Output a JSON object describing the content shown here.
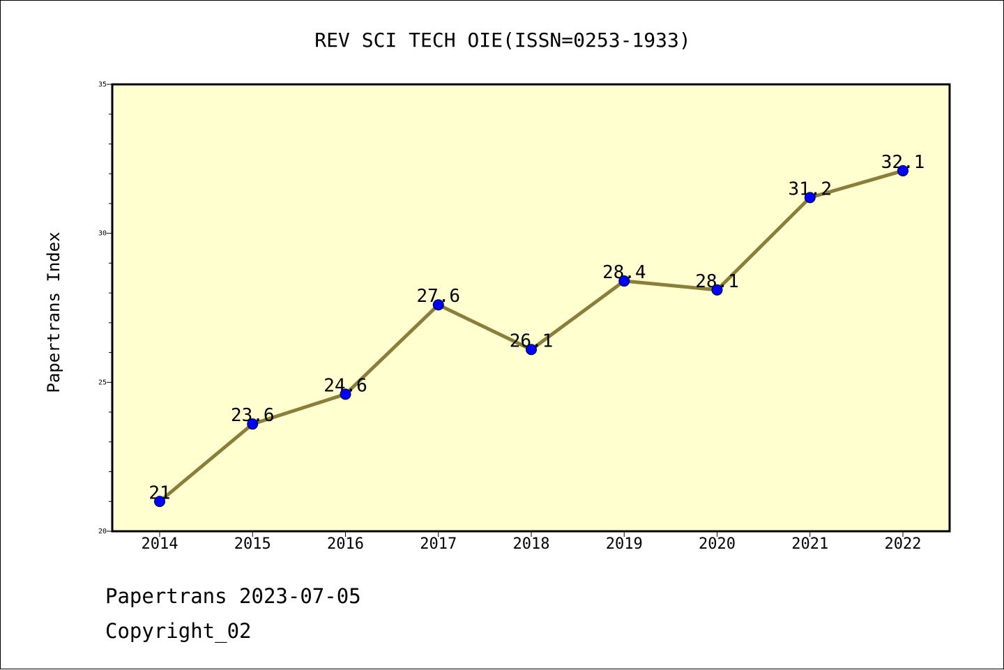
{
  "chart_data": {
    "type": "line",
    "title": "REV SCI TECH OIE(ISSN=0253-1933)",
    "xlabel": "",
    "ylabel": "Papertrans Index",
    "categories": [
      "2014",
      "2015",
      "2016",
      "2017",
      "2018",
      "2019",
      "2020",
      "2021",
      "2022"
    ],
    "values": [
      21,
      23.6,
      24.6,
      27.6,
      26.1,
      28.4,
      28.1,
      31.2,
      32.1
    ],
    "data_labels": [
      "21",
      "23.6",
      "24.6",
      "27.6",
      "26.1",
      "28.4",
      "28.1",
      "31.2",
      "32.1"
    ],
    "ylim": [
      20,
      35
    ],
    "yticks": [
      "20",
      "25",
      "30",
      "35"
    ],
    "grid": false,
    "colors": {
      "plot_background": "#ffffd0",
      "line": "#8b7d3a",
      "marker": "#0000ff"
    }
  },
  "footer": {
    "line1": "Papertrans 2023-07-05",
    "line2": "Copyright_02"
  }
}
